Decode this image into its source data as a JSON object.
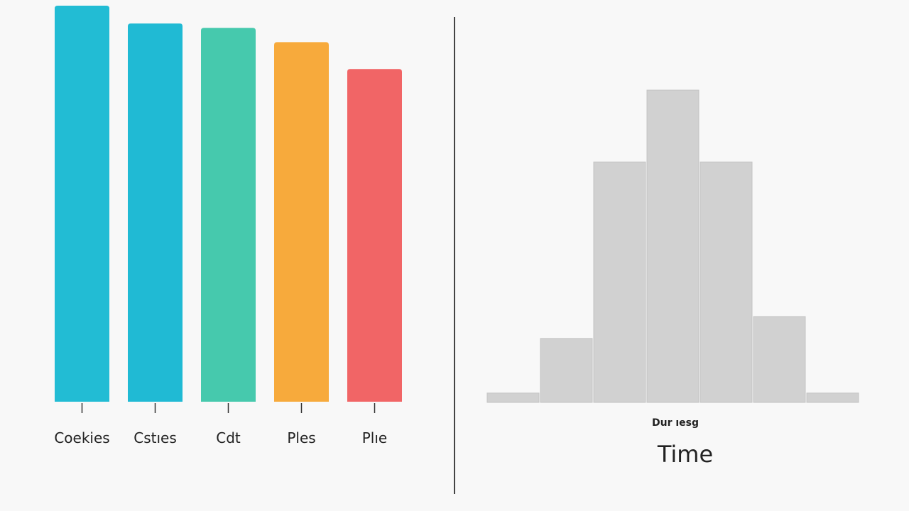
{
  "chart_data": [
    {
      "type": "bar",
      "categories": [
        "Coekies",
        "Cstıes",
        "Cdt",
        "Ples",
        "Plıe"
      ],
      "values": [
        100,
        95.5,
        94.4,
        90.8,
        84
      ],
      "ylim": [
        0,
        100
      ],
      "grid": false,
      "colors": [
        "#22bcd4",
        "#20bad4",
        "#46c9ad",
        "#f7aa3c",
        "#f16566"
      ]
    },
    {
      "type": "bar",
      "subtype": "histogram",
      "categories": [
        "",
        "",
        "",
        "",
        "",
        "",
        ""
      ],
      "values": [
        3,
        20.5,
        77,
        100,
        77,
        27.5,
        3
      ],
      "ylim": [
        0,
        100
      ],
      "xlabel_small": "Dur ıesg",
      "xlabel": "Time",
      "grid": false,
      "color": "#d1d1d1"
    }
  ],
  "divider_color": "#444444"
}
